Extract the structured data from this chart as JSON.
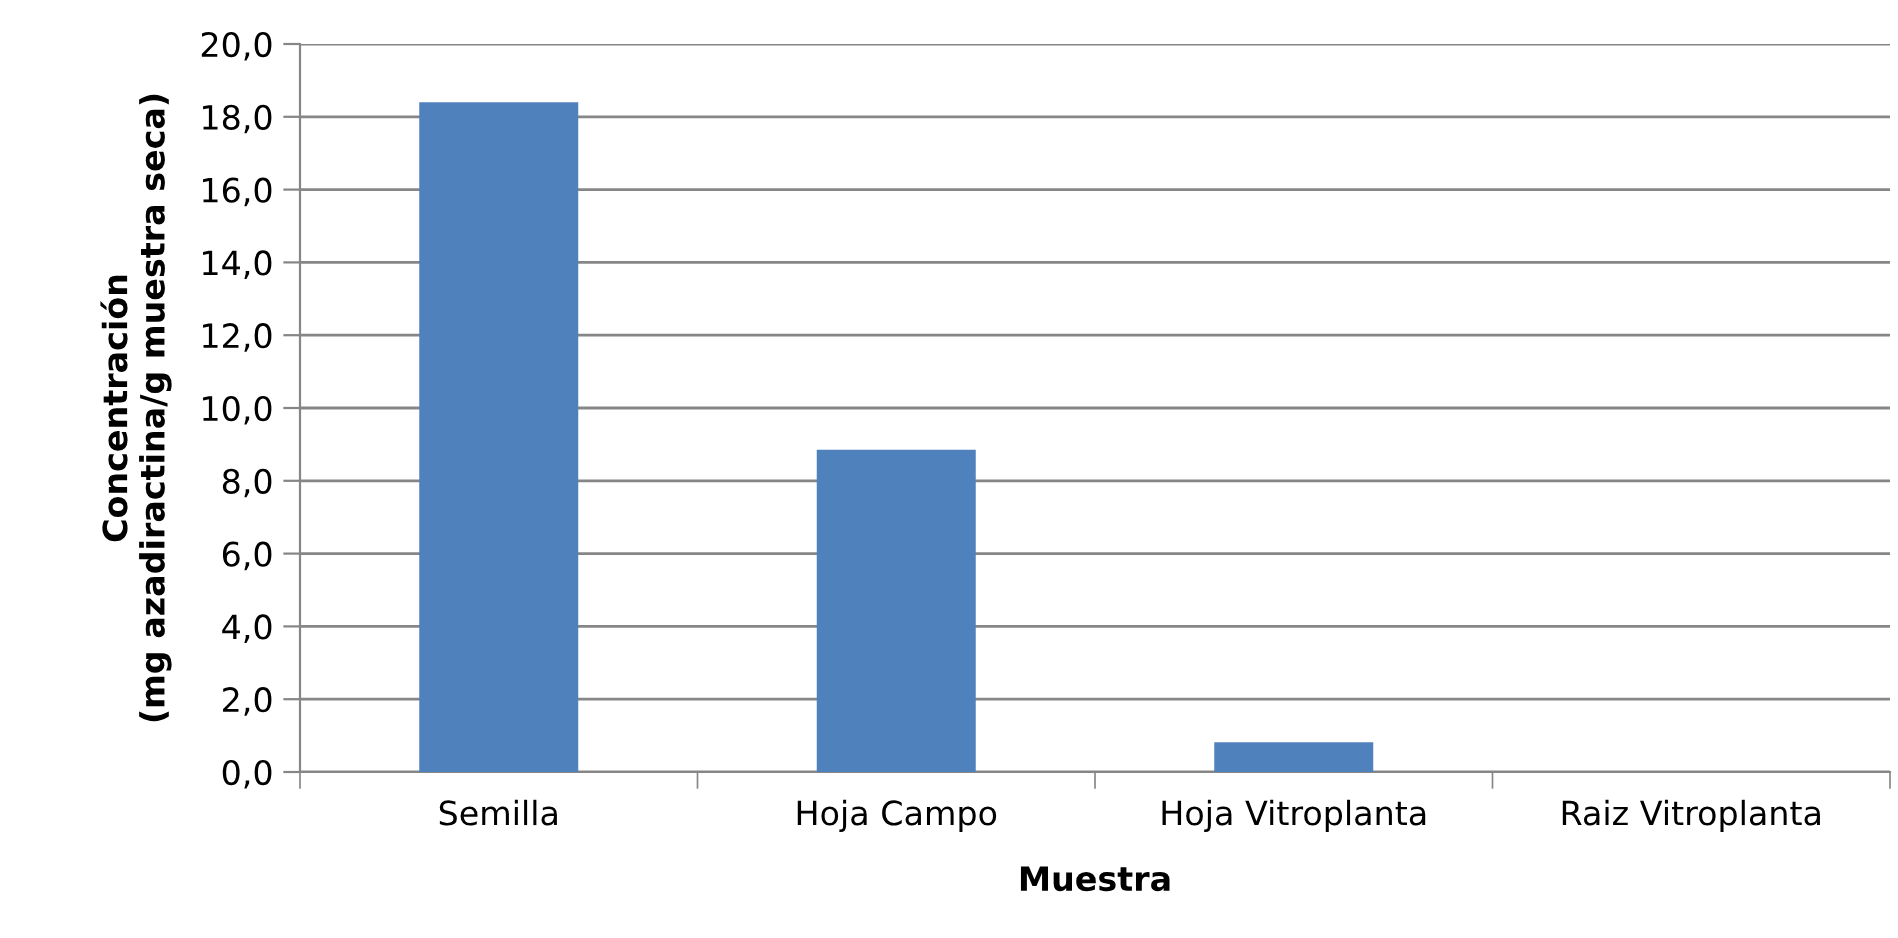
{
  "chart_data": {
    "type": "bar",
    "xlabel": "Muestra",
    "ylabel": "Concentración\n(mg azadiractina/g muestra seca)",
    "categories": [
      "Semilla",
      "Hoja Campo",
      "Hoja Vitroplanta",
      "Raiz Vitroplanta"
    ],
    "values": [
      18.4,
      8.85,
      0.82,
      0
    ],
    "color": "#4f81bd",
    "ylim": [
      0,
      20
    ],
    "yticks": [
      {
        "value": 0,
        "label": "0,0"
      },
      {
        "value": 2,
        "label": "2,0"
      },
      {
        "value": 4,
        "label": "4,0"
      },
      {
        "value": 6,
        "label": "6,0"
      },
      {
        "value": 8,
        "label": "8,0"
      },
      {
        "value": 10,
        "label": "10,0"
      },
      {
        "value": 12,
        "label": "12,0"
      },
      {
        "value": 14,
        "label": "14,0"
      },
      {
        "value": 16,
        "label": "16,0"
      },
      {
        "value": 18,
        "label": "18,0"
      },
      {
        "value": 20,
        "label": "20,0"
      }
    ],
    "grid": "y",
    "legend": false
  }
}
